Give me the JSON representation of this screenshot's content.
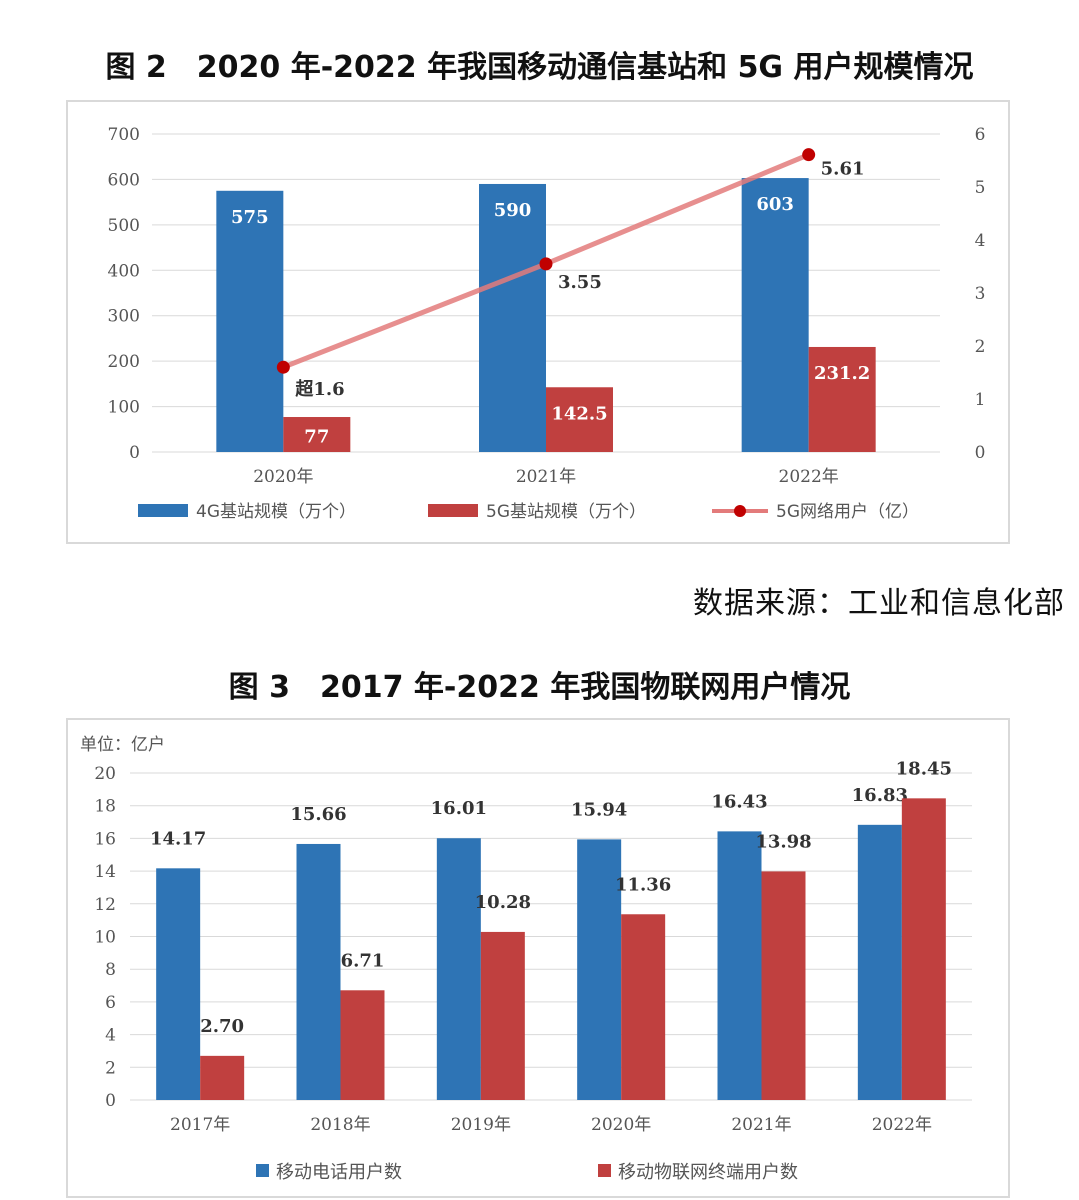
{
  "figure2": {
    "title": "图 2　2020 年-2022 年我国移动通信基站和 5G 用户规模情况",
    "source": "数据来源：工业和信息化部",
    "chart_data": {
      "type": "bar",
      "categories": [
        "2020年",
        "2021年",
        "2022年"
      ],
      "series": [
        {
          "name": "4G基站规模（万个）",
          "type": "bar",
          "axis": "left",
          "values": [
            575,
            590,
            603
          ],
          "labels": [
            "575",
            "590",
            "603"
          ],
          "color": "#2e74b5"
        },
        {
          "name": "5G基站规模（万个）",
          "type": "bar",
          "axis": "left",
          "values": [
            77,
            142.5,
            231.2
          ],
          "labels": [
            "77",
            "142.5",
            "231.2"
          ],
          "color": "#c0403f"
        },
        {
          "name": "5G网络用户（亿）",
          "type": "line",
          "axis": "right",
          "values": [
            1.6,
            3.55,
            5.61
          ],
          "labels": [
            "超1.6",
            "3.55",
            "5.61"
          ],
          "color": "#e37b7b",
          "marker_color": "#c00000"
        }
      ],
      "ylim": [
        0,
        700
      ],
      "yticks": [
        "0",
        "100",
        "200",
        "300",
        "400",
        "500",
        "600",
        "700"
      ],
      "y2lim": [
        0,
        6
      ],
      "y2ticks": [
        "0",
        "1",
        "2",
        "3",
        "4",
        "5",
        "6"
      ],
      "grid": true,
      "legend": "bottom"
    }
  },
  "figure3": {
    "title": "图 3　2017 年-2022 年我国物联网用户情况",
    "unit": "单位：亿户",
    "chart_data": {
      "type": "bar",
      "categories": [
        "2017年",
        "2018年",
        "2019年",
        "2020年",
        "2021年",
        "2022年"
      ],
      "series": [
        {
          "name": "移动电话用户数",
          "values": [
            14.17,
            15.66,
            16.01,
            15.94,
            16.43,
            16.83
          ],
          "labels": [
            "14.17",
            "15.66",
            "16.01",
            "15.94",
            "16.43",
            "16.83"
          ],
          "color": "#2e74b5"
        },
        {
          "name": "移动物联网终端用户数",
          "values": [
            2.7,
            6.71,
            10.28,
            11.36,
            13.98,
            18.45
          ],
          "labels": [
            "2.70",
            "6.71",
            "10.28",
            "11.36",
            "13.98",
            "18.45"
          ],
          "color": "#c0403f"
        }
      ],
      "ylim": [
        0,
        20
      ],
      "yticks": [
        "0",
        "2",
        "4",
        "6",
        "8",
        "10",
        "12",
        "14",
        "16",
        "18",
        "20"
      ],
      "grid": true,
      "legend": "bottom"
    }
  }
}
